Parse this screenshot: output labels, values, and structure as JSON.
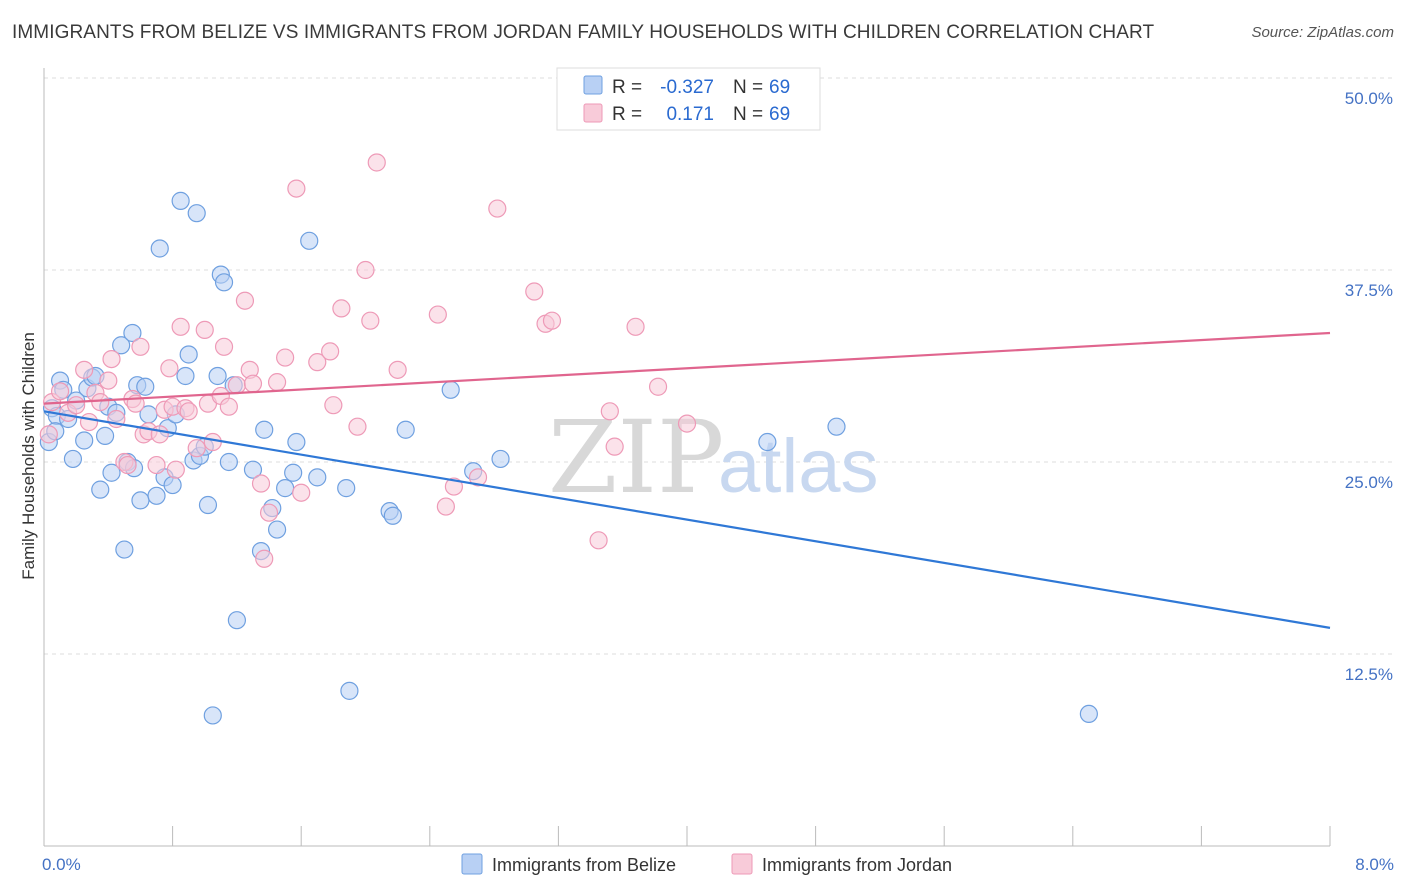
{
  "title": "IMMIGRANTS FROM BELIZE VS IMMIGRANTS FROM JORDAN FAMILY HOUSEHOLDS WITH CHILDREN CORRELATION CHART",
  "source": "Source: ZipAtlas.com",
  "watermark": {
    "zip": "ZIP",
    "atlas": "atlas"
  },
  "legend": {
    "rows": [
      {
        "r_label": "R =",
        "r_value": "-0.327",
        "n_label": "N =",
        "n_value": "69"
      },
      {
        "r_label": "R =",
        "r_value": "0.171",
        "n_label": "N =",
        "n_value": "69"
      }
    ]
  },
  "bottom_legend": [
    "Immigrants from Belize",
    "Immigrants from Jordan"
  ],
  "chart_data": {
    "type": "scatter",
    "title": "IMMIGRANTS FROM BELIZE VS IMMIGRANTS FROM JORDAN FAMILY HOUSEHOLDS WITH CHILDREN CORRELATION CHART",
    "xlabel": "",
    "ylabel": "Family Households with Children",
    "xlim": [
      0,
      8
    ],
    "ylim": [
      0,
      52
    ],
    "x_tick_labels": {
      "left": "0.0%",
      "right": "8.0%"
    },
    "y_ticks": [
      {
        "value": 12.5,
        "label": "12.5%"
      },
      {
        "value": 25.0,
        "label": "25.0%"
      },
      {
        "value": 37.5,
        "label": "37.5%"
      },
      {
        "value": 50.0,
        "label": "50.0%"
      }
    ],
    "grid": true,
    "legend_position": "top-center",
    "series": [
      {
        "name": "Immigrants from Belize",
        "color": "#6fa0e0",
        "fill": "#b8d0f4",
        "trend": {
          "x": [
            0,
            8
          ],
          "y": [
            28.3,
            14.2
          ],
          "color": "#2f78d6"
        },
        "points": [
          [
            0.03,
            26.3
          ],
          [
            0.05,
            28.5
          ],
          [
            0.08,
            28.0
          ],
          [
            0.1,
            30.3
          ],
          [
            0.12,
            29.7
          ],
          [
            0.15,
            27.8
          ],
          [
            0.18,
            25.2
          ],
          [
            0.2,
            29.0
          ],
          [
            0.25,
            26.4
          ],
          [
            0.27,
            29.8
          ],
          [
            0.3,
            30.5
          ],
          [
            0.32,
            30.6
          ],
          [
            0.35,
            23.2
          ],
          [
            0.38,
            26.7
          ],
          [
            0.4,
            28.6
          ],
          [
            0.42,
            24.3
          ],
          [
            0.45,
            28.2
          ],
          [
            0.48,
            32.6
          ],
          [
            0.5,
            19.3
          ],
          [
            0.52,
            25.0
          ],
          [
            0.55,
            33.4
          ],
          [
            0.56,
            24.6
          ],
          [
            0.58,
            30.0
          ],
          [
            0.6,
            22.5
          ],
          [
            0.63,
            29.9
          ],
          [
            0.65,
            28.1
          ],
          [
            0.7,
            22.8
          ],
          [
            0.72,
            38.9
          ],
          [
            0.75,
            24.0
          ],
          [
            0.77,
            27.2
          ],
          [
            0.8,
            23.5
          ],
          [
            0.82,
            28.1
          ],
          [
            0.85,
            42.0
          ],
          [
            0.88,
            30.6
          ],
          [
            0.9,
            32.0
          ],
          [
            0.93,
            25.1
          ],
          [
            0.95,
            41.2
          ],
          [
            0.97,
            25.4
          ],
          [
            1.0,
            26.0
          ],
          [
            1.02,
            22.2
          ],
          [
            1.05,
            8.5
          ],
          [
            1.08,
            30.6
          ],
          [
            1.1,
            37.2
          ],
          [
            1.12,
            36.7
          ],
          [
            1.15,
            25.0
          ],
          [
            1.18,
            30.0
          ],
          [
            1.2,
            14.7
          ],
          [
            1.3,
            24.5
          ],
          [
            1.35,
            19.2
          ],
          [
            1.37,
            27.1
          ],
          [
            1.42,
            22.0
          ],
          [
            1.45,
            20.6
          ],
          [
            1.5,
            23.3
          ],
          [
            1.55,
            24.3
          ],
          [
            1.57,
            26.3
          ],
          [
            1.65,
            39.4
          ],
          [
            1.7,
            24.0
          ],
          [
            1.88,
            23.3
          ],
          [
            1.9,
            10.1
          ],
          [
            2.15,
            21.8
          ],
          [
            2.17,
            21.5
          ],
          [
            2.25,
            27.1
          ],
          [
            2.53,
            29.7
          ],
          [
            2.67,
            24.4
          ],
          [
            2.84,
            25.2
          ],
          [
            4.5,
            26.3
          ],
          [
            4.93,
            27.3
          ],
          [
            6.5,
            8.6
          ],
          [
            0.07,
            27.0
          ]
        ]
      },
      {
        "name": "Immigrants from Jordan",
        "color": "#ee9ab7",
        "fill": "#f8cbd9",
        "trend": {
          "x": [
            0,
            8
          ],
          "y": [
            28.8,
            33.4
          ],
          "color": "#e0658e"
        },
        "points": [
          [
            0.03,
            26.8
          ],
          [
            0.05,
            28.9
          ],
          [
            0.1,
            29.6
          ],
          [
            0.15,
            28.2
          ],
          [
            0.2,
            28.7
          ],
          [
            0.25,
            31.0
          ],
          [
            0.28,
            27.6
          ],
          [
            0.32,
            29.5
          ],
          [
            0.35,
            28.9
          ],
          [
            0.4,
            30.3
          ],
          [
            0.42,
            31.7
          ],
          [
            0.45,
            27.8
          ],
          [
            0.5,
            25.0
          ],
          [
            0.52,
            24.8
          ],
          [
            0.55,
            29.1
          ],
          [
            0.57,
            28.8
          ],
          [
            0.6,
            32.5
          ],
          [
            0.62,
            26.8
          ],
          [
            0.65,
            27.0
          ],
          [
            0.7,
            24.8
          ],
          [
            0.72,
            26.8
          ],
          [
            0.75,
            28.4
          ],
          [
            0.78,
            31.1
          ],
          [
            0.8,
            28.6
          ],
          [
            0.82,
            24.5
          ],
          [
            0.85,
            33.8
          ],
          [
            0.88,
            28.5
          ],
          [
            0.9,
            28.3
          ],
          [
            0.95,
            25.9
          ],
          [
            1.0,
            33.6
          ],
          [
            1.02,
            28.8
          ],
          [
            1.05,
            26.3
          ],
          [
            1.1,
            29.3
          ],
          [
            1.12,
            32.5
          ],
          [
            1.15,
            28.6
          ],
          [
            1.2,
            30.0
          ],
          [
            1.25,
            35.5
          ],
          [
            1.28,
            31.0
          ],
          [
            1.3,
            30.1
          ],
          [
            1.35,
            23.6
          ],
          [
            1.37,
            18.7
          ],
          [
            1.4,
            21.7
          ],
          [
            1.45,
            30.2
          ],
          [
            1.5,
            31.8
          ],
          [
            1.57,
            42.8
          ],
          [
            1.6,
            23.0
          ],
          [
            1.7,
            31.5
          ],
          [
            1.78,
            32.2
          ],
          [
            1.8,
            28.7
          ],
          [
            1.85,
            35.0
          ],
          [
            1.95,
            27.3
          ],
          [
            2.0,
            37.5
          ],
          [
            2.03,
            34.2
          ],
          [
            2.07,
            44.5
          ],
          [
            2.2,
            31.0
          ],
          [
            2.45,
            34.6
          ],
          [
            2.5,
            22.1
          ],
          [
            2.55,
            23.4
          ],
          [
            2.7,
            24.0
          ],
          [
            2.82,
            41.5
          ],
          [
            3.05,
            36.1
          ],
          [
            3.12,
            34.0
          ],
          [
            3.16,
            34.2
          ],
          [
            3.45,
            19.9
          ],
          [
            3.52,
            28.3
          ],
          [
            3.55,
            26.0
          ],
          [
            3.68,
            33.8
          ],
          [
            3.82,
            29.9
          ],
          [
            4.0,
            27.5
          ]
        ]
      }
    ]
  },
  "extra_points_note_excluded": true
}
